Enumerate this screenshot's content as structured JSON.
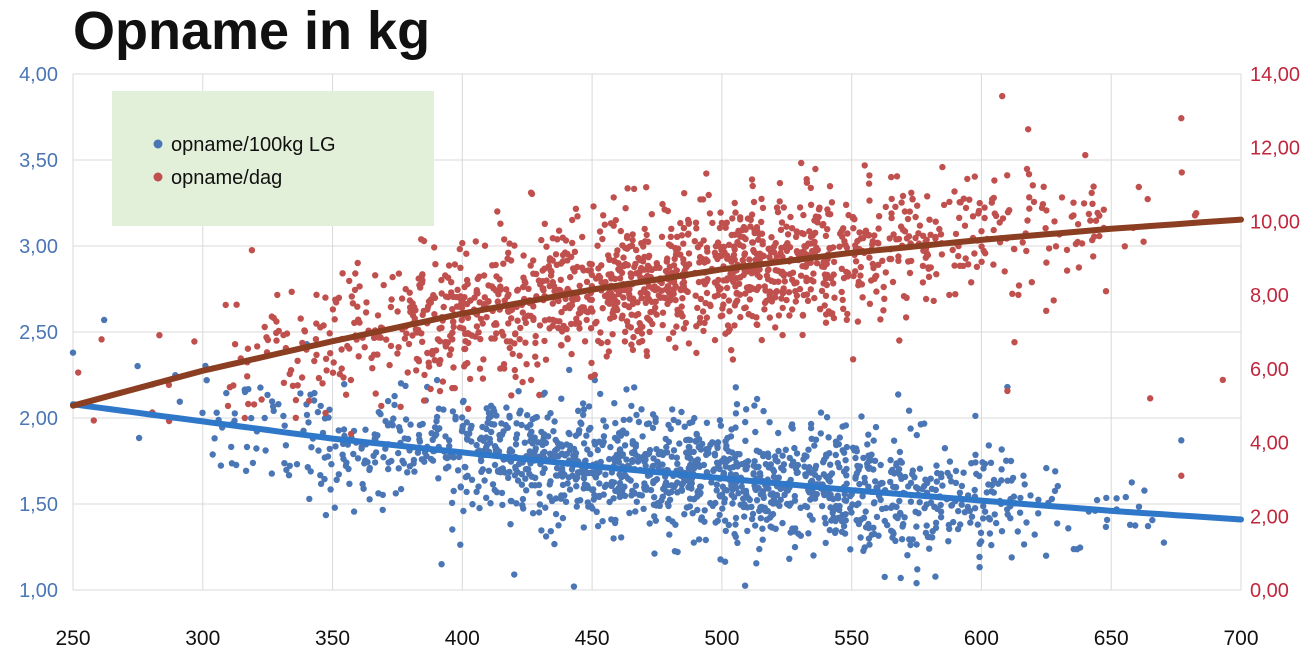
{
  "chart_data": {
    "type": "scatter",
    "title": "Opname in kg",
    "xlabel": "",
    "ylabel": "",
    "xlim": [
      250,
      700
    ],
    "ylim_left": [
      1.0,
      4.0
    ],
    "ylim_right": [
      0.0,
      14.0
    ],
    "x_ticks": [
      "250",
      "300",
      "350",
      "400",
      "450",
      "500",
      "550",
      "600",
      "650",
      "700"
    ],
    "y_left_ticks": [
      "1,00",
      "1,50",
      "2,00",
      "2,50",
      "3,00",
      "3,50",
      "4,00"
    ],
    "y_right_ticks": [
      "0,00",
      "2,00",
      "4,00",
      "6,00",
      "8,00",
      "10,00",
      "12,00",
      "14,00"
    ],
    "grid": true,
    "legend_position": "top-left",
    "legend_background": "#e2efd9",
    "series": [
      {
        "name": "opname/100kg LG",
        "axis": "left",
        "color": "#4a76b5",
        "trend_color": "#2f78c9",
        "trend": [
          [
            250,
            2.08
          ],
          [
            300,
            1.98
          ],
          [
            350,
            1.88
          ],
          [
            400,
            1.8
          ],
          [
            450,
            1.72
          ],
          [
            500,
            1.65
          ],
          [
            550,
            1.58
          ],
          [
            600,
            1.52
          ],
          [
            650,
            1.46
          ],
          [
            700,
            1.41
          ]
        ],
        "notable_points": [
          [
            262,
            2.57
          ],
          [
            250,
            2.38
          ],
          [
            610,
            2.18
          ],
          [
            677,
            1.87
          ],
          [
            443,
            1.02
          ],
          [
            392,
            1.15
          ],
          [
            420,
            1.09
          ],
          [
            575,
            1.04
          ]
        ],
        "cloud": {
          "x_range": [
            260,
            700
          ],
          "approx_count": 1500,
          "spread_around_trend": 0.18
        }
      },
      {
        "name": "opname/dag",
        "axis": "right",
        "color": "#c0504d",
        "trend_color": "#8b3e22",
        "trend": [
          [
            250,
            5.0
          ],
          [
            300,
            5.95
          ],
          [
            350,
            6.75
          ],
          [
            400,
            7.5
          ],
          [
            450,
            8.15
          ],
          [
            500,
            8.7
          ],
          [
            550,
            9.15
          ],
          [
            600,
            9.5
          ],
          [
            650,
            9.8
          ],
          [
            700,
            10.05
          ]
        ],
        "notable_points": [
          [
            608,
            13.4
          ],
          [
            677,
            12.8
          ],
          [
            618,
            12.5
          ],
          [
            640,
            11.8
          ],
          [
            494,
            11.3
          ],
          [
            252,
            5.9
          ],
          [
            261,
            6.8
          ],
          [
            258,
            4.6
          ],
          [
            610,
            5.4
          ],
          [
            693,
            5.7
          ],
          [
            665,
            5.2
          ],
          [
            677,
            3.1
          ]
        ],
        "cloud": {
          "x_range": [
            255,
            700
          ],
          "approx_count": 1500,
          "spread_around_trend": 0.95
        }
      }
    ]
  }
}
